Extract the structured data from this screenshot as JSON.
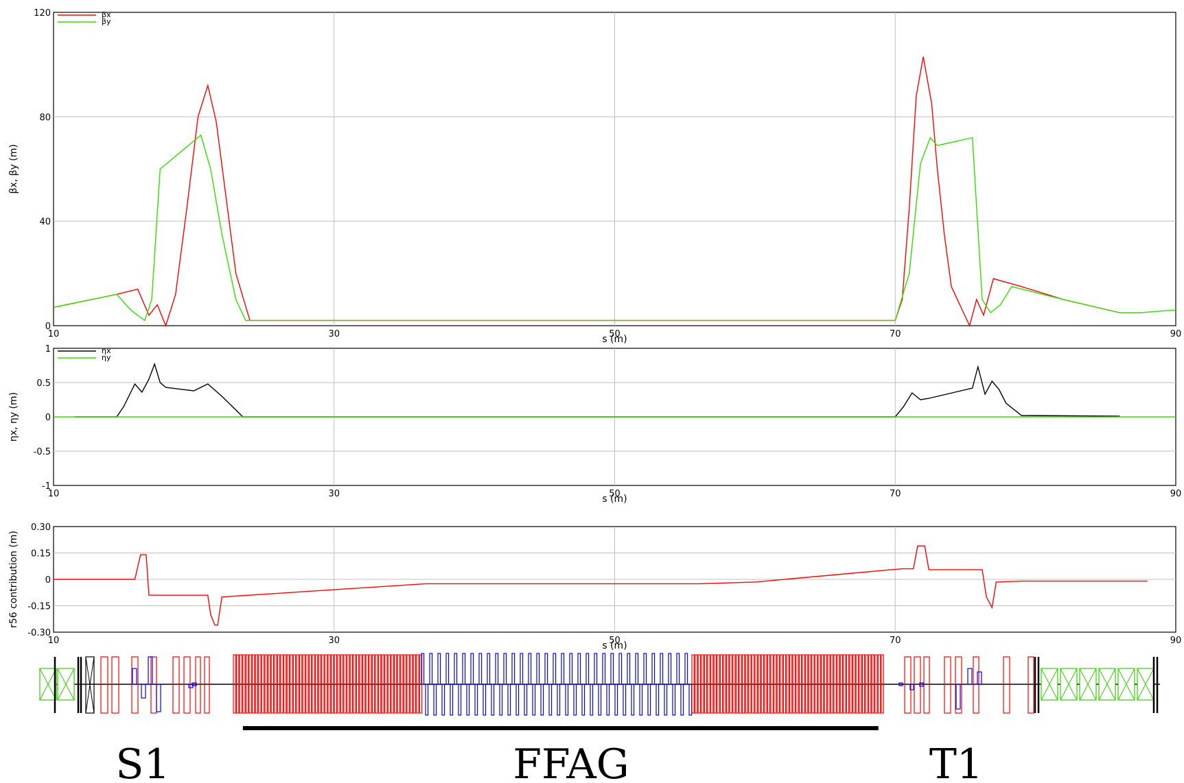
{
  "chart_data": [
    {
      "id": "beta",
      "type": "line",
      "xlabel": "s (m)",
      "ylabel": "βx, βy (m)",
      "xlim": [
        10,
        90
      ],
      "ylim": [
        0,
        120
      ],
      "xticks": [
        10,
        30,
        50,
        70,
        90
      ],
      "yticks": [
        0,
        40,
        80,
        120
      ],
      "grid": true,
      "legend": "top-left",
      "series": [
        {
          "name": "βx",
          "color": "#ff0000",
          "x": [
            10,
            14.5,
            16,
            16.8,
            17.4,
            18,
            18.7,
            19.5,
            20.3,
            21,
            21.6,
            23,
            24,
            70,
            70.5,
            71,
            71.5,
            72,
            72.6,
            73,
            73.5,
            74,
            75.3,
            75.8,
            76.3,
            77,
            79,
            82,
            86
          ],
          "y": [
            7,
            12,
            14,
            4,
            8,
            0,
            12,
            45,
            80,
            92,
            78,
            20,
            2,
            2,
            10,
            45,
            88,
            103,
            85,
            60,
            35,
            15,
            0,
            10,
            4,
            18,
            15,
            10,
            5
          ]
        },
        {
          "name": "βy",
          "color": "#33dd00",
          "x": [
            10,
            14.5,
            15.5,
            16.5,
            17,
            17.6,
            20.5,
            21.2,
            22,
            23,
            23.7,
            70,
            71,
            71.8,
            72.5,
            73,
            75.5,
            76.2,
            76.8,
            77.5,
            78.3,
            82,
            86,
            87.5,
            90
          ],
          "y": [
            7,
            12,
            6,
            2,
            10,
            60,
            73,
            60,
            35,
            10,
            2,
            2,
            20,
            62,
            72,
            69,
            72,
            10,
            5,
            8,
            15,
            10,
            5,
            5,
            6
          ]
        }
      ]
    },
    {
      "id": "eta",
      "type": "line",
      "xlabel": "s (m)",
      "ylabel": "ηx, ηy (m)",
      "xlim": [
        10,
        90
      ],
      "ylim": [
        -1.0,
        1.0
      ],
      "xticks": [
        10,
        30,
        50,
        70,
        90
      ],
      "yticks": [
        -1.0,
        -0.5,
        0,
        0.5,
        1.0
      ],
      "grid": true,
      "legend": "top-left",
      "series": [
        {
          "name": "ηx",
          "color": "#000000",
          "x": [
            11.5,
            14.5,
            15,
            15.8,
            16.3,
            16.8,
            17.2,
            17.6,
            18,
            20,
            21,
            22,
            23.5,
            70,
            70.6,
            71.2,
            71.8,
            72.4,
            75.5,
            75.9,
            76.4,
            76.9,
            77.4,
            77.9,
            79,
            86
          ],
          "y": [
            0,
            0,
            0.15,
            0.48,
            0.36,
            0.55,
            0.77,
            0.5,
            0.43,
            0.38,
            0.48,
            0.3,
            0,
            0,
            0.15,
            0.35,
            0.25,
            0.27,
            0.42,
            0.73,
            0.33,
            0.52,
            0.4,
            0.2,
            0.02,
            0.01
          ]
        },
        {
          "name": "ηy",
          "color": "#33dd00",
          "x": [
            10,
            90
          ],
          "y": [
            0,
            0
          ]
        }
      ]
    },
    {
      "id": "r56",
      "type": "line",
      "xlabel": "s (m)",
      "ylabel": "r56 contribution (m)",
      "xlim": [
        10,
        90
      ],
      "ylim": [
        -0.3,
        0.3
      ],
      "xticks": [
        10,
        30,
        50,
        70,
        90
      ],
      "yticks": [
        -0.3,
        -0.15,
        0,
        0.15,
        0.3
      ],
      "yticklabels": [
        "-0.30",
        "-0.15",
        "0",
        "0.15",
        "0.30"
      ],
      "grid": true,
      "series": [
        {
          "name": "",
          "color": "#ff0000",
          "x": [
            10,
            14.7,
            15.8,
            16.2,
            16.6,
            16.8,
            21,
            21.2,
            21.5,
            21.7,
            22,
            36.5,
            56,
            60,
            69,
            70.5,
            71.3,
            71.6,
            72.1,
            72.4,
            76.2,
            76.5,
            76.9,
            77.2,
            79,
            88
          ],
          "y": [
            0,
            0,
            0,
            0.14,
            0.14,
            -0.09,
            -0.09,
            -0.2,
            -0.26,
            -0.26,
            -0.1,
            -0.025,
            -0.025,
            -0.015,
            0.05,
            0.06,
            0.06,
            0.19,
            0.19,
            0.055,
            0.055,
            -0.1,
            -0.16,
            -0.015,
            -0.01,
            -0.01
          ]
        }
      ]
    }
  ],
  "lattice": {
    "ffag_bar_range": [
      23.5,
      68.8
    ]
  },
  "sections": {
    "s1": "S1",
    "ffag": "FFAG",
    "t1": "T1"
  }
}
